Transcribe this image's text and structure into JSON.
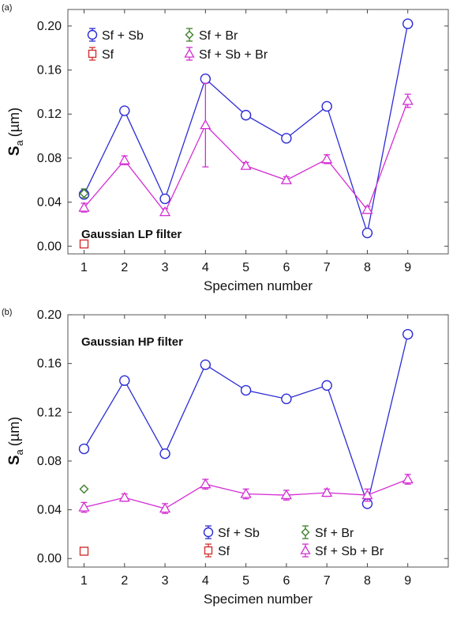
{
  "colors": {
    "Sf + Sb": "#2b2bd6",
    "Sf + Br": "#3f7f2a",
    "Sf": "#d43030",
    "Sf + Sb + Br": "#d42ed4"
  },
  "chart_data": [
    {
      "panel_label": "(a)",
      "type": "line",
      "annotation": "Gaussian LP filter",
      "xlabel": "Specimen number",
      "ylabel_main": "S",
      "ylabel_sub": "a",
      "ylabel_unit": "(µm)",
      "x": [
        1,
        2,
        3,
        4,
        5,
        6,
        7,
        8,
        9
      ],
      "xticks": [
        "1",
        "2",
        "3",
        "4",
        "5",
        "6",
        "7",
        "8",
        "9"
      ],
      "xlim": [
        0.6,
        10
      ],
      "ylim": [
        -0.007,
        0.215
      ],
      "yticks": [
        "0.00",
        "0.04",
        "0.08",
        "0.12",
        "0.16",
        "0.20"
      ],
      "ytick_values": [
        0,
        0.04,
        0.08,
        0.12,
        0.16,
        0.2
      ],
      "legend_position": "top",
      "series": [
        {
          "name": "Sf + Sb",
          "marker": "circle",
          "line": true,
          "x": [
            1,
            2,
            3,
            4,
            5,
            6,
            7,
            8,
            9
          ],
          "values": [
            0.047,
            0.123,
            0.043,
            0.152,
            0.119,
            0.098,
            0.127,
            0.012,
            0.202
          ]
        },
        {
          "name": "Sf",
          "marker": "square",
          "line": false,
          "x": [
            1
          ],
          "values": [
            0.002
          ]
        },
        {
          "name": "Sf + Br",
          "marker": "diamond",
          "line": false,
          "x": [
            1
          ],
          "values": [
            0.048
          ],
          "err": [
            0.004
          ]
        },
        {
          "name": "Sf + Sb + Br",
          "marker": "triangle",
          "line": true,
          "x": [
            1,
            2,
            3,
            4,
            5,
            6,
            7,
            8,
            9
          ],
          "values": [
            0.035,
            0.078,
            0.031,
            0.11,
            0.073,
            0.06,
            0.079,
            0.033,
            0.132
          ],
          "err": [
            0.004,
            0.004,
            0.003,
            0.038,
            0.003,
            0.003,
            0.004,
            0.003,
            0.006
          ]
        }
      ]
    },
    {
      "panel_label": "(b)",
      "type": "line",
      "annotation": "Gaussian HP filter",
      "xlabel": "Specimen number",
      "ylabel_main": "S",
      "ylabel_sub": "a",
      "ylabel_unit": "(µm)",
      "x": [
        1,
        2,
        3,
        4,
        5,
        6,
        7,
        8,
        9
      ],
      "xticks": [
        "1",
        "2",
        "3",
        "4",
        "5",
        "6",
        "7",
        "8",
        "9"
      ],
      "xlim": [
        0.6,
        10
      ],
      "ylim": [
        -0.007,
        0.2
      ],
      "yticks": [
        "0.00",
        "0.04",
        "0.08",
        "0.12",
        "0.16",
        "0.20"
      ],
      "ytick_values": [
        0,
        0.04,
        0.08,
        0.12,
        0.16,
        0.2
      ],
      "legend_position": "bottom-right",
      "series": [
        {
          "name": "Sf + Sb",
          "marker": "circle",
          "line": true,
          "x": [
            1,
            2,
            3,
            4,
            5,
            6,
            7,
            8,
            9
          ],
          "values": [
            0.09,
            0.146,
            0.086,
            0.159,
            0.138,
            0.131,
            0.142,
            0.045,
            0.184
          ]
        },
        {
          "name": "Sf",
          "marker": "square",
          "line": false,
          "x": [
            1
          ],
          "values": [
            0.006
          ]
        },
        {
          "name": "Sf + Br",
          "marker": "diamond",
          "line": false,
          "x": [
            1
          ],
          "values": [
            0.057
          ]
        },
        {
          "name": "Sf + Sb + Br",
          "marker": "triangle",
          "line": true,
          "x": [
            1,
            2,
            3,
            4,
            5,
            6,
            7,
            8,
            9
          ],
          "values": [
            0.042,
            0.05,
            0.041,
            0.061,
            0.053,
            0.052,
            0.054,
            0.052,
            0.065
          ],
          "err": [
            0.004,
            0.003,
            0.004,
            0.004,
            0.004,
            0.004,
            0.003,
            0.005,
            0.004
          ]
        }
      ]
    }
  ]
}
